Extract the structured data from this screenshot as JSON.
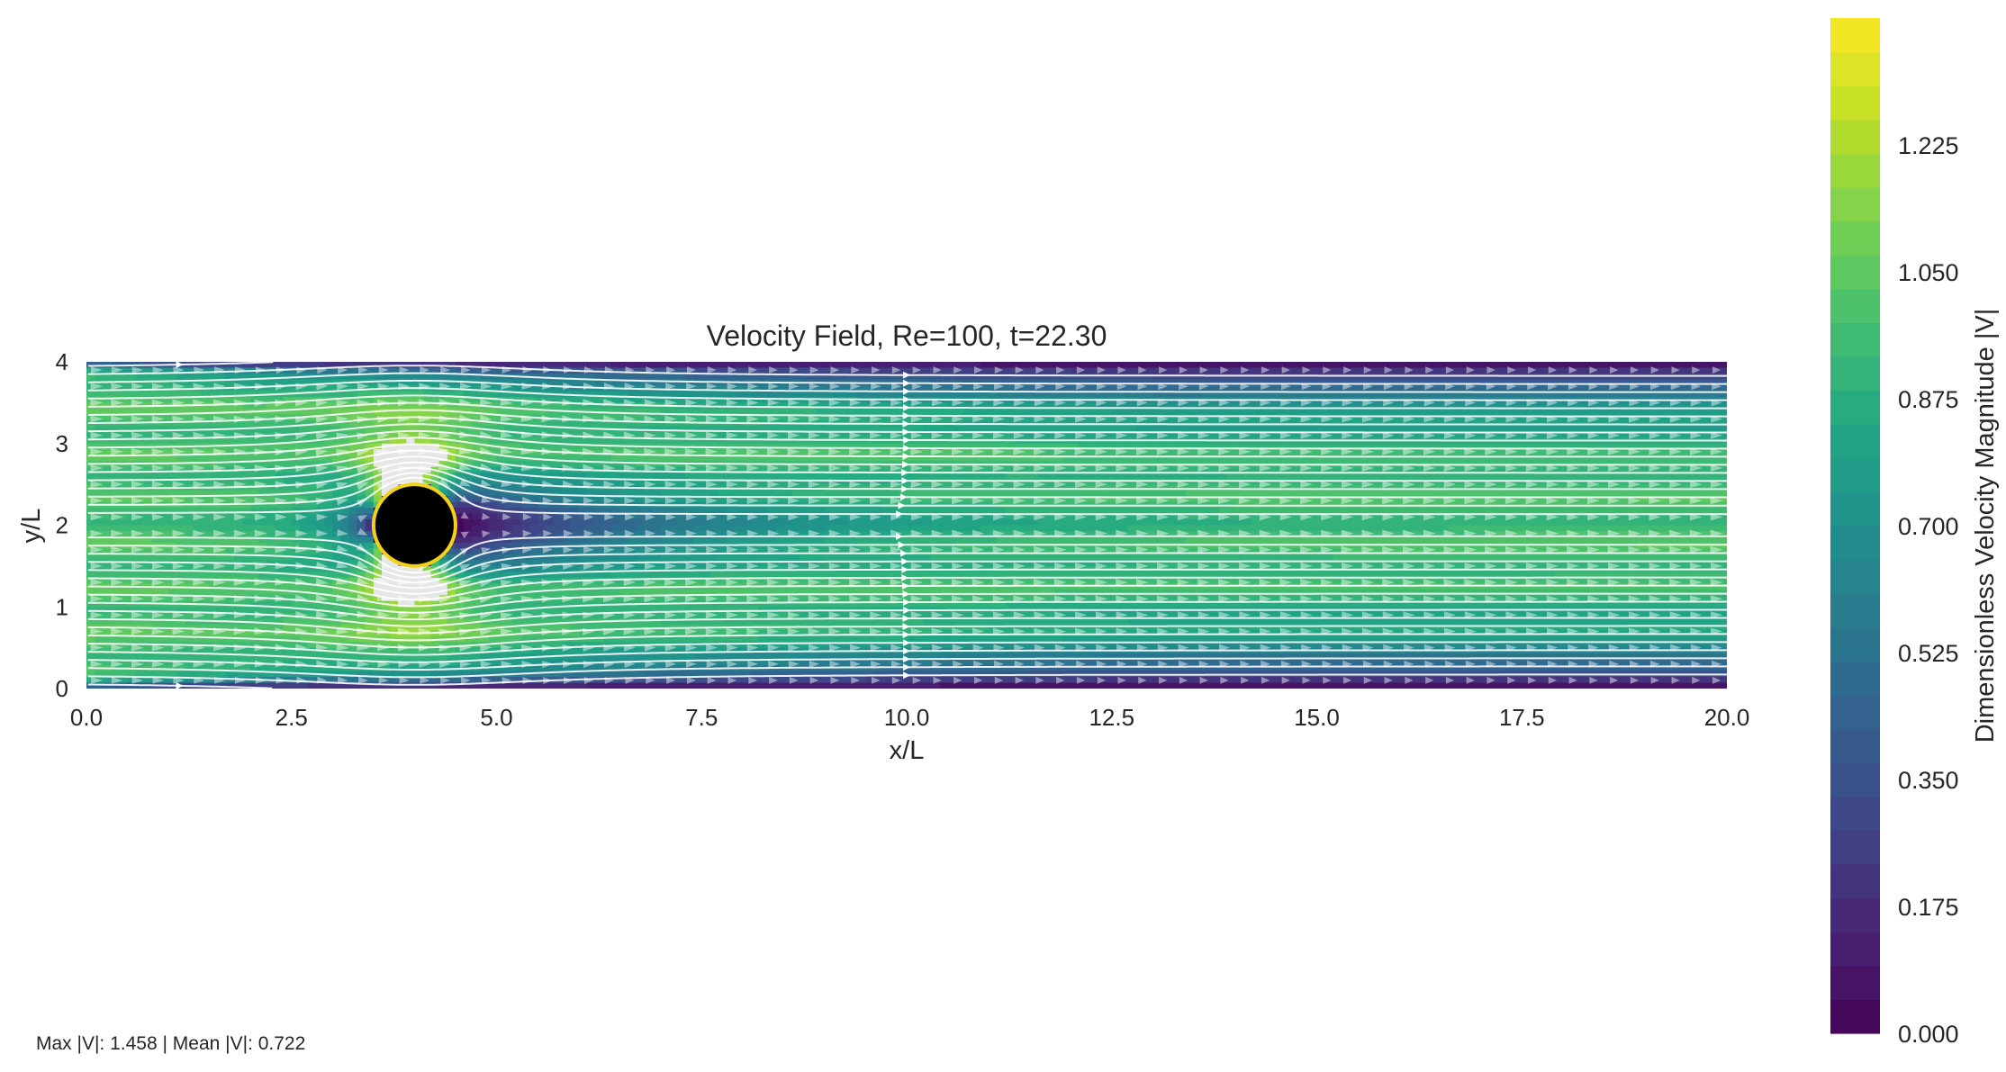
{
  "chart_data": {
    "type": "heatmap",
    "title": "Velocity Field, Re=100, t=22.30",
    "xlabel": "x/L",
    "ylabel": "y/L",
    "xlim": [
      0,
      20
    ],
    "ylim": [
      0,
      4
    ],
    "x_ticks": [
      "0.0",
      "2.5",
      "5.0",
      "7.5",
      "10.0",
      "12.5",
      "15.0",
      "17.5",
      "20.0"
    ],
    "y_ticks": [
      "0",
      "1",
      "2",
      "3",
      "4"
    ],
    "colormap": "viridis",
    "colorbar": {
      "label": "Dimensionless Velocity Magnitude |V|",
      "range": [
        0,
        1.4
      ],
      "levels": 30,
      "ticks": [
        "0.000",
        "0.175",
        "0.350",
        "0.525",
        "0.700",
        "0.875",
        "1.050",
        "1.225"
      ]
    },
    "obstacle": {
      "shape": "circle",
      "center": [
        4,
        2
      ],
      "radius": 0.5,
      "fill": "#000000",
      "edge": "#f2d216"
    },
    "inflow_velocity": 1.0,
    "streamlines": true,
    "quiver": true,
    "grid": false
  },
  "stats_text": "Max |V|: 1.458 | Mean |V|: 0.722"
}
